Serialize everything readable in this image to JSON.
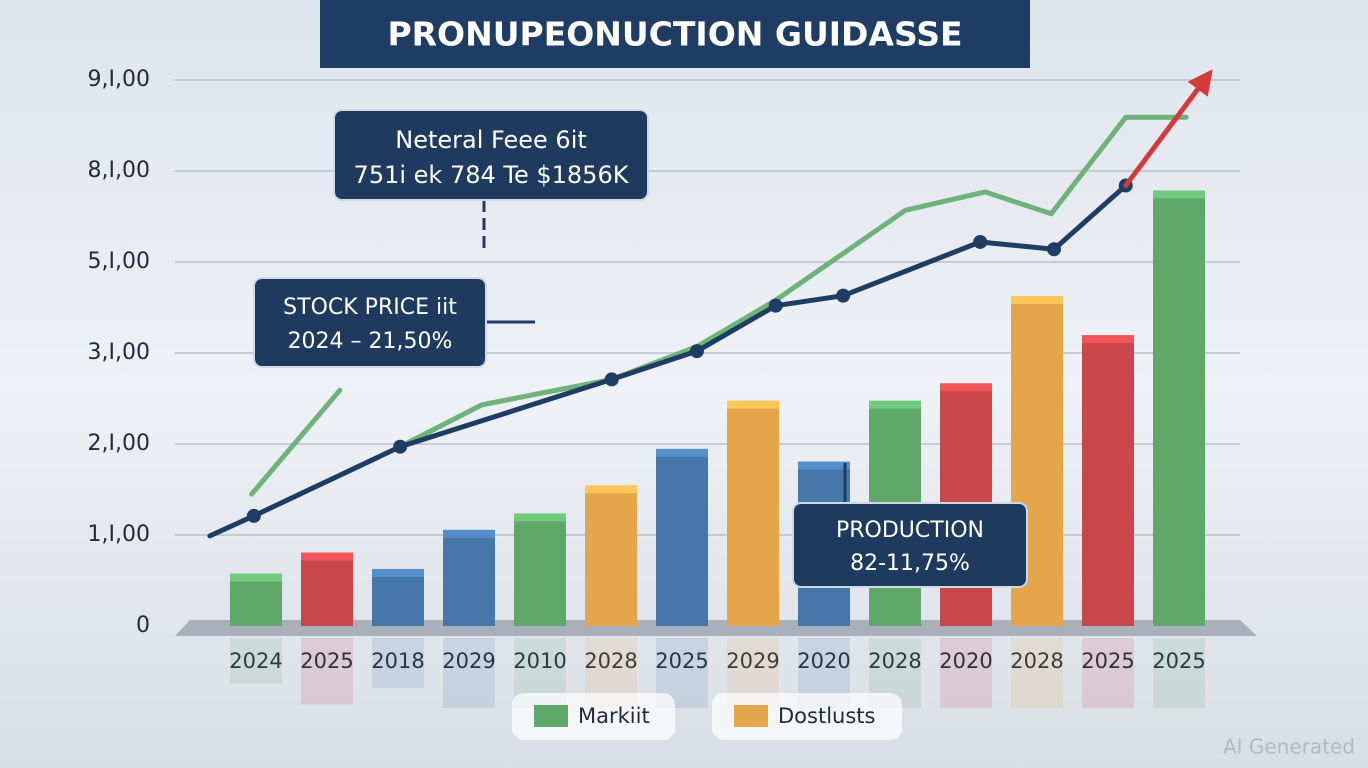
{
  "chart_data": {
    "type": "bar",
    "title": "PRONUPEONUCTION GUIDASSE",
    "categories": [
      "2024",
      "2025",
      "2018",
      "2029",
      "2010",
      "2028",
      "2025",
      "2029",
      "2020",
      "2028",
      "2020",
      "2028",
      "2025",
      "2025"
    ],
    "values": [
      0.5,
      0.73,
      0.55,
      0.98,
      1.16,
      1.47,
      1.87,
      2.4,
      1.73,
      2.4,
      2.59,
      3.55,
      3.12,
      4.71
    ],
    "colors": [
      "#5fa86a",
      "#c9464a",
      "#4677aa",
      "#4677aa",
      "#5fa86a",
      "#e4a54b",
      "#4677aa",
      "#e4a54b",
      "#4677aa",
      "#5fa86a",
      "#c9464a",
      "#e4a54b",
      "#c9464a",
      "#5fa86a"
    ],
    "ylim": [
      0,
      6
    ],
    "yticks": [
      0,
      {
        "value": 1,
        "label": "1,I,00"
      },
      {
        "value": 2,
        "label": "2,I,00"
      },
      {
        "value": 3,
        "label": "3,I,00"
      },
      {
        "value": 4,
        "label": "5,I,00"
      },
      {
        "value": 5,
        "label": "8,I,00"
      },
      {
        "value": 6,
        "label": "9,I,00"
      }
    ],
    "grid": true,
    "lines": [
      {
        "color": "#6db37a",
        "x": [
          -0.06,
          1.18,
          null,
          2.03,
          3.18,
          5.01,
          6.21,
          7.32,
          9.15,
          10.27,
          11.2,
          12.25,
          13.1
        ],
        "values": [
          1.45,
          2.59,
          null,
          1.97,
          2.43,
          2.71,
          3.07,
          3.58,
          4.57,
          4.77,
          4.53,
          5.59,
          5.59
        ]
      },
      {
        "color": "#1f3d64",
        "x": [
          -0.65,
          -0.03,
          2.03,
          5.01,
          6.21,
          7.32,
          8.27,
          10.2,
          11.24,
          12.25
        ],
        "values": [
          0.99,
          1.21,
          1.97,
          2.71,
          3.02,
          3.52,
          3.63,
          4.22,
          4.14,
          4.84
        ],
        "markers": true
      },
      {
        "color": "#d6393c",
        "x": [
          12.25,
          13.39
        ],
        "values": [
          4.84,
          6.03
        ],
        "arrow": true
      }
    ],
    "annotations": [
      {
        "lines": [
          "Neteral Feee 6it",
          "751i ek 784 Te $1856K"
        ]
      },
      {
        "lines": [
          "STOCK PRICE iit",
          "2024 – 21,50%"
        ]
      },
      {
        "lines": [
          "PRODUCTION",
          "82-11,75%"
        ]
      }
    ],
    "legend": [
      {
        "name": "Markiit",
        "color": "#5fa86a"
      },
      {
        "name": "Dostlusts",
        "color": "#e4a54b"
      }
    ],
    "watermark": "AI Generated"
  }
}
